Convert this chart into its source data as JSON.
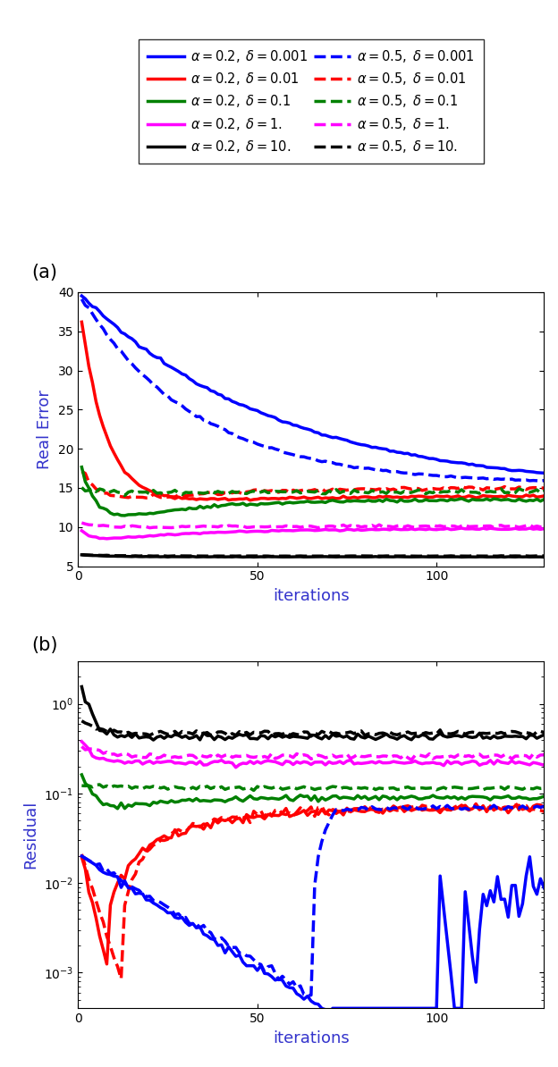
{
  "title_a": "(a)",
  "title_b": "(b)",
  "xlabel": "iterations",
  "ylabel_a": "Real Error",
  "ylabel_b": "Residual",
  "xlim_a": [
    0,
    130
  ],
  "ylim_a": [
    5,
    40
  ],
  "yticks_a": [
    5,
    10,
    15,
    20,
    25,
    30,
    35,
    40
  ],
  "xlim_b": [
    0,
    130
  ],
  "ylim_b_log": [
    -3.6,
    0.5
  ],
  "xticks": [
    0,
    50,
    100
  ],
  "colors": {
    "blue": "#0000FF",
    "red": "#FF0000",
    "green": "#008000",
    "magenta": "#FF00FF",
    "black": "#000000"
  },
  "lw": 2.5,
  "lw_thin": 1.8
}
